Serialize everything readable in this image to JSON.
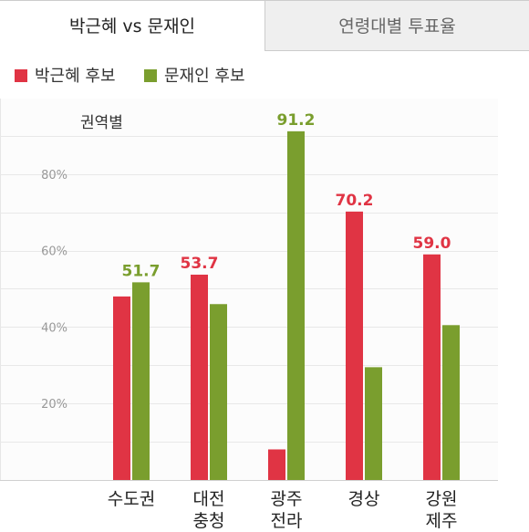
{
  "tabs": [
    {
      "label": "박근혜 vs 문재인",
      "active": true
    },
    {
      "label": "연령대별 투표율",
      "active": false
    }
  ],
  "legend": [
    {
      "label": "박근혜 후보",
      "color": "#e03444"
    },
    {
      "label": "문재인 후보",
      "color": "#7a9e2e"
    }
  ],
  "chart_data": {
    "type": "bar",
    "title": "권역별",
    "categories": [
      [
        "수도권"
      ],
      [
        "대전",
        "충청"
      ],
      [
        "광주",
        "전라"
      ],
      [
        "경상"
      ],
      [
        "강원",
        "제주"
      ]
    ],
    "series": [
      {
        "name": "박근혜 후보",
        "color": "#e03444",
        "values": [
          48.0,
          53.7,
          8.0,
          70.2,
          59.0
        ]
      },
      {
        "name": "문재인 후보",
        "color": "#7a9e2e",
        "values": [
          51.7,
          46.0,
          91.2,
          29.5,
          40.5
        ]
      }
    ],
    "data_labels": [
      {
        "category": 0,
        "series": 1,
        "text": "51.7"
      },
      {
        "category": 1,
        "series": 0,
        "text": "53.7"
      },
      {
        "category": 2,
        "series": 1,
        "text": "91.2"
      },
      {
        "category": 3,
        "series": 0,
        "text": "70.2"
      },
      {
        "category": 4,
        "series": 0,
        "text": "59.0"
      }
    ],
    "yticks": [
      20,
      40,
      60,
      80
    ],
    "ytick_suffix": "%",
    "ylim": [
      0,
      100
    ],
    "grid": true
  }
}
